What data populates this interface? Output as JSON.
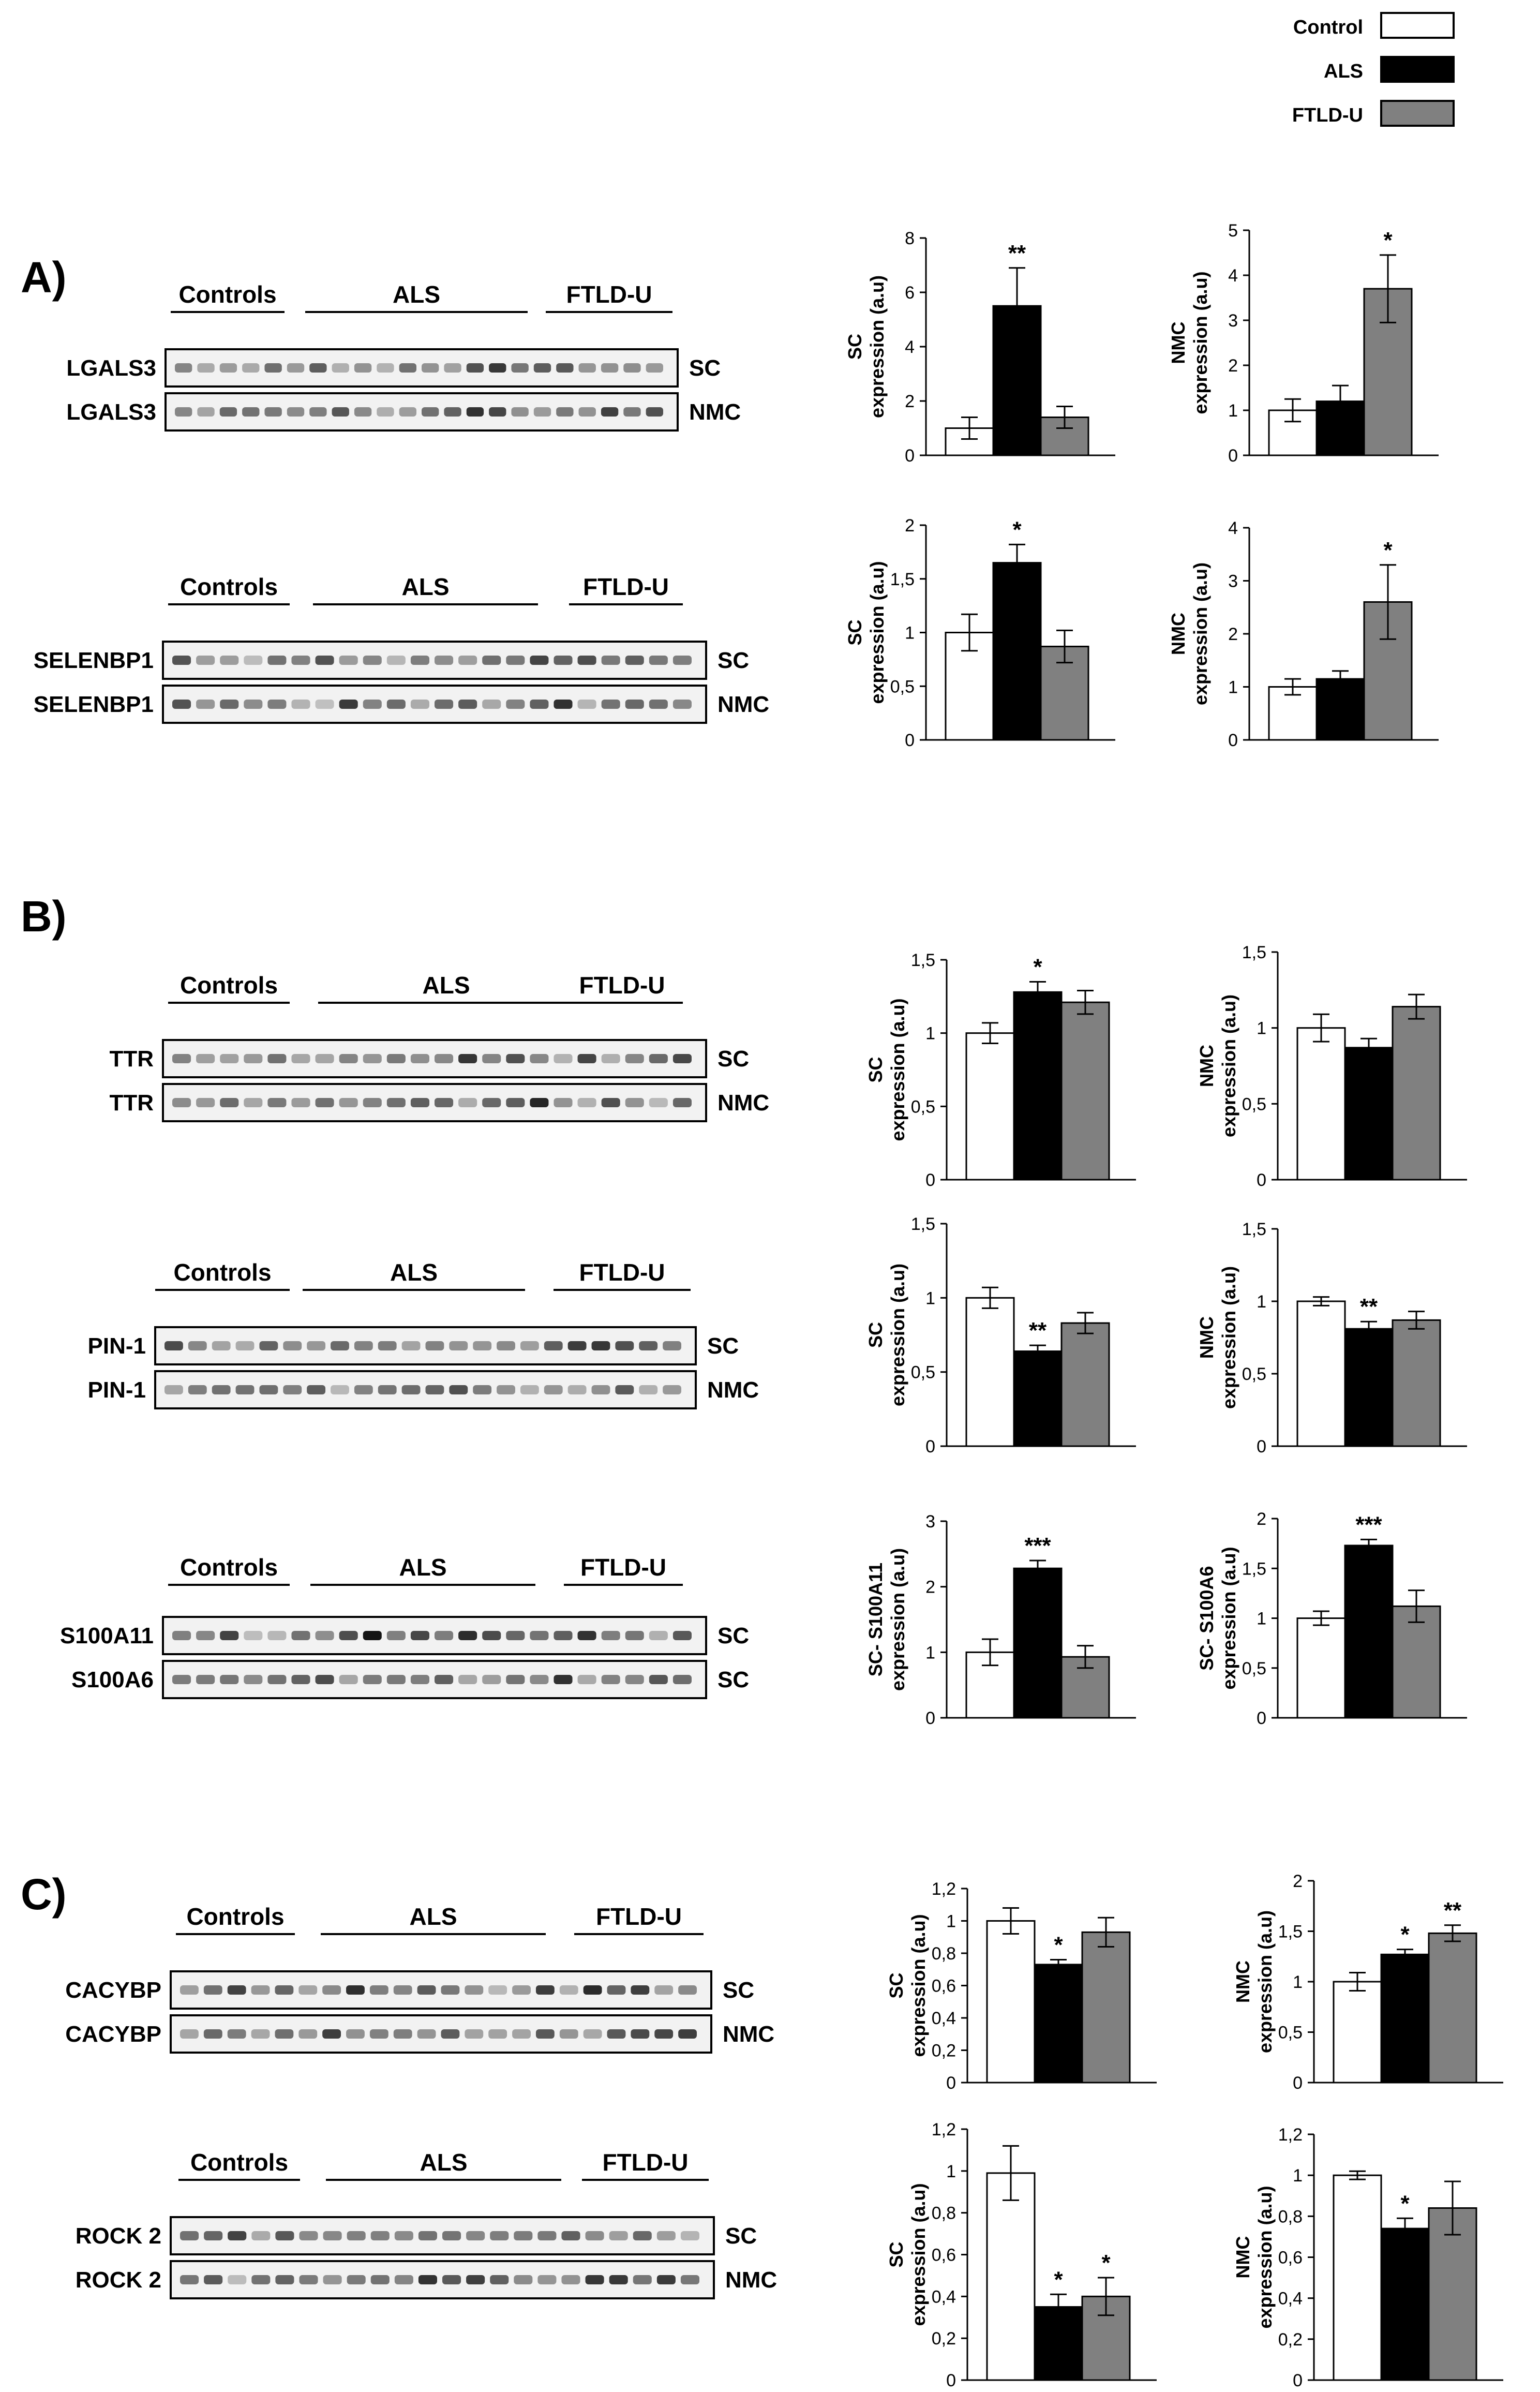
{
  "legend": {
    "items": [
      {
        "label": "Control",
        "color": "#ffffff"
      },
      {
        "label": "ALS",
        "color": "#000000"
      },
      {
        "label": "FTLD-U",
        "color": "#808080"
      }
    ]
  },
  "sections": [
    {
      "label": "A)"
    },
    {
      "label": "B)"
    },
    {
      "label": "C)"
    }
  ],
  "blots": [
    {
      "group_labels": [
        "Controls",
        "ALS",
        "FTLD-U"
      ],
      "rows": [
        {
          "protein": "LGALS3",
          "fraction": "SC"
        },
        {
          "protein": "LGALS3",
          "fraction": "NMC"
        }
      ]
    },
    {
      "group_labels": [
        "Controls",
        "ALS",
        "FTLD-U"
      ],
      "rows": [
        {
          "protein": "SELENBP1",
          "fraction": "SC"
        },
        {
          "protein": "SELENBP1",
          "fraction": "NMC"
        }
      ]
    },
    {
      "group_labels": [
        "Controls",
        "ALS",
        "FTLD-U"
      ],
      "rows": [
        {
          "protein": "TTR",
          "fraction": "SC"
        },
        {
          "protein": "TTR",
          "fraction": "NMC"
        }
      ]
    },
    {
      "group_labels": [
        "Controls",
        "ALS",
        "FTLD-U"
      ],
      "rows": [
        {
          "protein": "PIN-1",
          "fraction": "SC"
        },
        {
          "protein": "PIN-1",
          "fraction": "NMC"
        }
      ]
    },
    {
      "group_labels": [
        "Controls",
        "ALS",
        "FTLD-U"
      ],
      "rows": [
        {
          "protein": "S100A11",
          "fraction": "SC"
        },
        {
          "protein": "S100A6",
          "fraction": "SC"
        }
      ]
    },
    {
      "group_labels": [
        "Controls",
        "ALS",
        "FTLD-U"
      ],
      "rows": [
        {
          "protein": "CACYBP",
          "fraction": "SC"
        },
        {
          "protein": "CACYBP",
          "fraction": "NMC"
        }
      ]
    },
    {
      "group_labels": [
        "Controls",
        "ALS",
        "FTLD-U"
      ],
      "rows": [
        {
          "protein": "ROCK 2",
          "fraction": "SC"
        },
        {
          "protein": "ROCK 2",
          "fraction": "NMC"
        }
      ]
    }
  ],
  "chart_data": [
    {
      "type": "bar",
      "ylabel": [
        "SC",
        "expression (a.u)"
      ],
      "ylim": [
        0,
        8
      ],
      "yticks": [
        "0",
        "2",
        "4",
        "6",
        "8"
      ],
      "categories": [
        "Control",
        "ALS",
        "FTLD-U"
      ],
      "values": [
        1.0,
        5.5,
        1.4
      ],
      "errors": [
        0.4,
        1.4,
        0.4
      ],
      "significance": [
        "",
        "**",
        ""
      ]
    },
    {
      "type": "bar",
      "ylabel": [
        "NMC",
        "expression (a.u)"
      ],
      "ylim": [
        0,
        5
      ],
      "yticks": [
        "0",
        "1",
        "2",
        "3",
        "4",
        "5"
      ],
      "categories": [
        "Control",
        "ALS",
        "FTLD-U"
      ],
      "values": [
        1.0,
        1.2,
        3.7
      ],
      "errors": [
        0.25,
        0.35,
        0.75
      ],
      "significance": [
        "",
        "",
        "*"
      ]
    },
    {
      "type": "bar",
      "ylabel": [
        "SC",
        "expression (a.u)"
      ],
      "ylim": [
        0,
        2
      ],
      "yticks": [
        "0",
        "0,5",
        "1",
        "1,5",
        "2"
      ],
      "categories": [
        "Control",
        "ALS",
        "FTLD-U"
      ],
      "values": [
        1.0,
        1.65,
        0.87
      ],
      "errors": [
        0.17,
        0.17,
        0.15
      ],
      "significance": [
        "",
        "*",
        ""
      ]
    },
    {
      "type": "bar",
      "ylabel": [
        "NMC",
        "expression (a.u)"
      ],
      "ylim": [
        0,
        4
      ],
      "yticks": [
        "0",
        "1",
        "2",
        "3",
        "4"
      ],
      "categories": [
        "Control",
        "ALS",
        "FTLD-U"
      ],
      "values": [
        1.0,
        1.15,
        2.6
      ],
      "errors": [
        0.15,
        0.15,
        0.7
      ],
      "significance": [
        "",
        "",
        "*"
      ]
    },
    {
      "type": "bar",
      "ylabel": [
        "SC",
        "expression (a.u)"
      ],
      "ylim": [
        0,
        1.5
      ],
      "yticks": [
        "0",
        "0,5",
        "1",
        "1,5"
      ],
      "categories": [
        "Control",
        "ALS",
        "FTLD-U"
      ],
      "values": [
        1.0,
        1.28,
        1.21
      ],
      "errors": [
        0.07,
        0.07,
        0.08
      ],
      "significance": [
        "",
        "*",
        ""
      ]
    },
    {
      "type": "bar",
      "ylabel": [
        "NMC",
        "expression (a.u)"
      ],
      "ylim": [
        0,
        1.5
      ],
      "yticks": [
        "0",
        "0,5",
        "1",
        "1,5"
      ],
      "categories": [
        "Control",
        "ALS",
        "FTLD-U"
      ],
      "values": [
        1.0,
        0.87,
        1.14
      ],
      "errors": [
        0.09,
        0.06,
        0.08
      ],
      "significance": [
        "",
        "",
        ""
      ]
    },
    {
      "type": "bar",
      "ylabel": [
        "SC",
        "expression (a.u)"
      ],
      "ylim": [
        0,
        1.5
      ],
      "yticks": [
        "0",
        "0,5",
        "1",
        "1,5"
      ],
      "categories": [
        "Control",
        "ALS",
        "FTLD-U"
      ],
      "values": [
        1.0,
        0.64,
        0.83
      ],
      "errors": [
        0.07,
        0.04,
        0.07
      ],
      "significance": [
        "",
        "**",
        ""
      ]
    },
    {
      "type": "bar",
      "ylabel": [
        "NMC",
        "expression (a.u)"
      ],
      "ylim": [
        0,
        1.5
      ],
      "yticks": [
        "0",
        "0,5",
        "1",
        "1,5"
      ],
      "categories": [
        "Control",
        "ALS",
        "FTLD-U"
      ],
      "values": [
        1.0,
        0.81,
        0.87
      ],
      "errors": [
        0.03,
        0.05,
        0.06
      ],
      "significance": [
        "",
        "**",
        ""
      ]
    },
    {
      "type": "bar",
      "ylabel": [
        "SC- S100A11",
        "expression (a.u)"
      ],
      "ylim": [
        0,
        3
      ],
      "yticks": [
        "0",
        "1",
        "2",
        "3"
      ],
      "categories": [
        "Control",
        "ALS",
        "FTLD-U"
      ],
      "values": [
        1.0,
        2.28,
        0.93
      ],
      "errors": [
        0.2,
        0.12,
        0.17
      ],
      "significance": [
        "",
        "***",
        ""
      ]
    },
    {
      "type": "bar",
      "ylabel": [
        "SC- S100A6",
        "expression (a.u)"
      ],
      "ylim": [
        0,
        2
      ],
      "yticks": [
        "0",
        "0,5",
        "1",
        "1,5",
        "2"
      ],
      "categories": [
        "Control",
        "ALS",
        "FTLD-U"
      ],
      "values": [
        1.0,
        1.73,
        1.12
      ],
      "errors": [
        0.07,
        0.06,
        0.16
      ],
      "significance": [
        "",
        "***",
        ""
      ]
    },
    {
      "type": "bar",
      "ylabel": [
        "SC",
        "expression (a.u)"
      ],
      "ylim": [
        0,
        1.2
      ],
      "yticks": [
        "0",
        "0,2",
        "0,4",
        "0,6",
        "0,8",
        "1",
        "1,2"
      ],
      "categories": [
        "Control",
        "ALS",
        "FTLD-U"
      ],
      "values": [
        1.0,
        0.73,
        0.93
      ],
      "errors": [
        0.08,
        0.03,
        0.09
      ],
      "significance": [
        "",
        "*",
        ""
      ]
    },
    {
      "type": "bar",
      "ylabel": [
        "NMC",
        "expression (a.u)"
      ],
      "ylim": [
        0,
        2
      ],
      "yticks": [
        "0",
        "0,5",
        "1",
        "1,5",
        "2"
      ],
      "categories": [
        "Control",
        "ALS",
        "FTLD-U"
      ],
      "values": [
        1.0,
        1.27,
        1.48
      ],
      "errors": [
        0.09,
        0.05,
        0.08
      ],
      "significance": [
        "",
        "*",
        "**"
      ]
    },
    {
      "type": "bar",
      "ylabel": [
        "SC",
        "expression (a.u)"
      ],
      "ylim": [
        0,
        1.2
      ],
      "yticks": [
        "0",
        "0,2",
        "0,4",
        "0,6",
        "0,8",
        "1",
        "1,2"
      ],
      "categories": [
        "Control",
        "ALS",
        "FTLD-U"
      ],
      "values": [
        0.99,
        0.35,
        0.4
      ],
      "errors": [
        0.13,
        0.06,
        0.09
      ],
      "significance": [
        "",
        "*",
        "*"
      ]
    },
    {
      "type": "bar",
      "ylabel": [
        "NMC",
        "expression (a.u)"
      ],
      "ylim": [
        0,
        1.2
      ],
      "yticks": [
        "0",
        "0,2",
        "0,4",
        "0,6",
        "0,8",
        "1",
        "1,2"
      ],
      "categories": [
        "Control",
        "ALS",
        "FTLD-U"
      ],
      "values": [
        1.0,
        0.74,
        0.84
      ],
      "errors": [
        0.02,
        0.05,
        0.13
      ],
      "significance": [
        "",
        "*",
        ""
      ]
    }
  ]
}
